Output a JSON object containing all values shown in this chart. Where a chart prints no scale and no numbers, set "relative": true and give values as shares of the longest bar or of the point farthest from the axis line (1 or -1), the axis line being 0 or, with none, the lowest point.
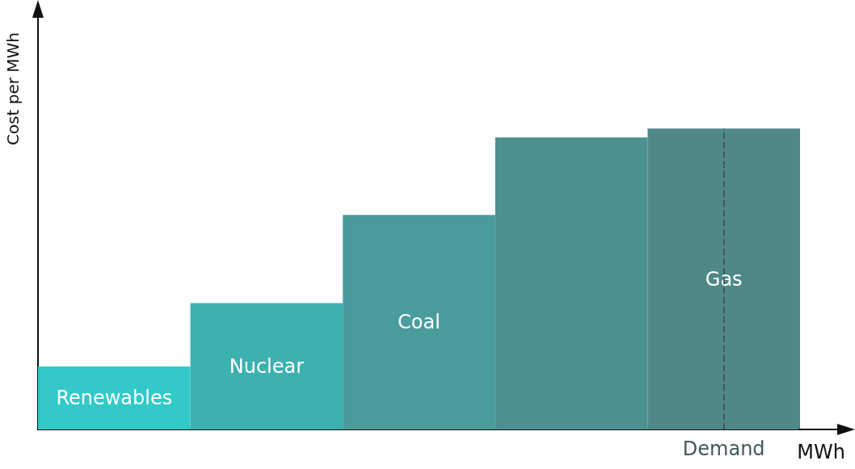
{
  "chart_data": {
    "type": "bar",
    "relative": true,
    "ylabel": "Cost per MWh",
    "xlabel": "MWh",
    "categories": [
      "Renewables",
      "Nuclear",
      "Coal",
      null,
      "Gas"
    ],
    "values": [
      0.209,
      0.42,
      0.713,
      0.97,
      1
    ],
    "colors": [
      "#33c9c9",
      "#3db0b0",
      "#4a9c9c",
      "#4c9090",
      "#508888"
    ],
    "ref_lines": [
      {
        "axis": "x",
        "value": "Gas",
        "label": "Demand",
        "color": "#3f5a5a",
        "line_style": "dashed"
      }
    ],
    "grid": false,
    "tick_labels": false
  }
}
